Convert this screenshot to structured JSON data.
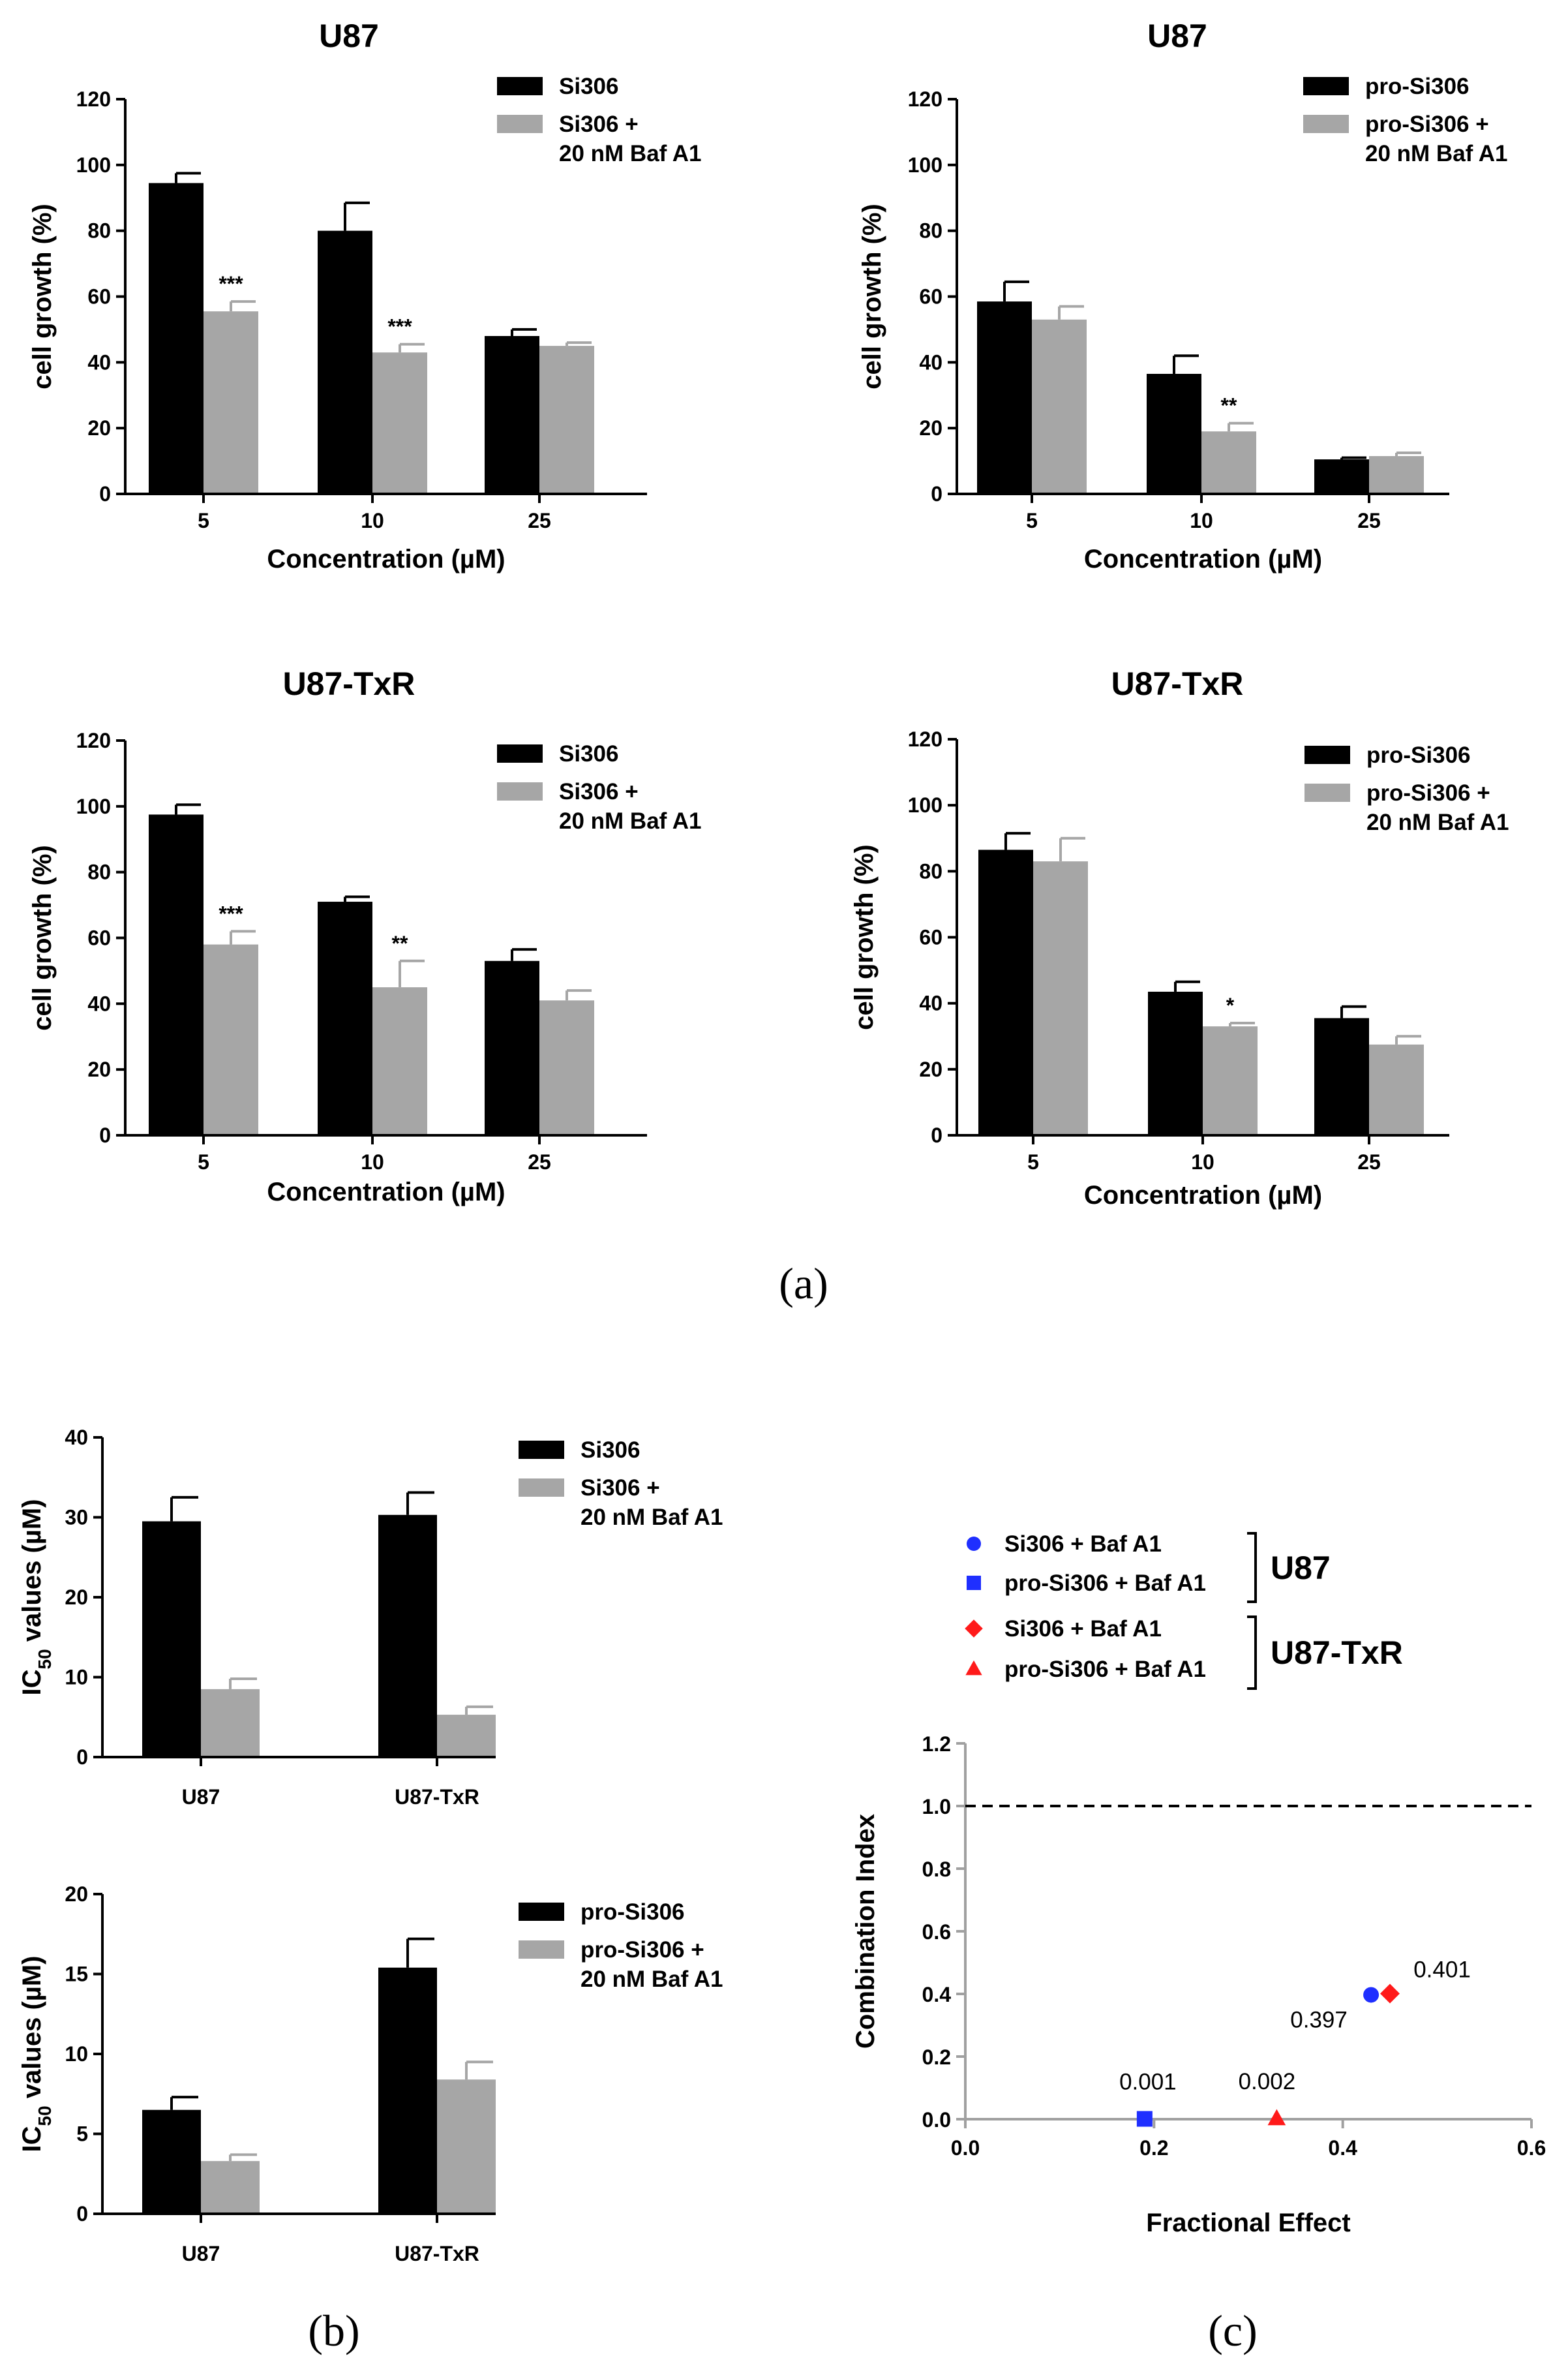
{
  "panel_labels": [
    "(a)",
    "(b)",
    "(c)"
  ],
  "colors": {
    "black": "#000000",
    "gray": "#a6a6a6",
    "blue": "#1f2fff",
    "red": "#ff1a1a"
  },
  "chart_data": [
    {
      "id": "a1",
      "type": "bar",
      "title": "U87",
      "xlabel": "Concentration (µM)",
      "ylabel": "cell growth (%)",
      "ylim": [
        0,
        120
      ],
      "yticks": [
        "0",
        "20",
        "40",
        "60",
        "80",
        "100",
        "120"
      ],
      "categories": [
        "5",
        "10",
        "25"
      ],
      "series": [
        {
          "name": "Si306",
          "color": "#000000",
          "values": [
            94.5,
            80,
            48
          ],
          "errors": [
            3,
            8.5,
            2
          ]
        },
        {
          "name": "Si306 + 20 nM Baf A1",
          "color": "#a6a6a6",
          "values": [
            55.5,
            43,
            45
          ],
          "errors": [
            3,
            2.5,
            1
          ]
        }
      ],
      "legend": [
        [
          "Si306"
        ],
        [
          "Si306 +",
          "20 nM Baf A1"
        ]
      ],
      "annotations": [
        {
          "category": 0,
          "text": "***"
        },
        {
          "category": 1,
          "text": "***"
        }
      ]
    },
    {
      "id": "a2",
      "type": "bar",
      "title": "U87",
      "xlabel": "Concentration (µM)",
      "ylabel": "cell growth (%)",
      "ylim": [
        0,
        120
      ],
      "yticks": [
        "0",
        "20",
        "40",
        "60",
        "80",
        "100",
        "120"
      ],
      "categories": [
        "5",
        "10",
        "25"
      ],
      "series": [
        {
          "name": "pro-Si306",
          "color": "#000000",
          "values": [
            58.5,
            36.5,
            10.5
          ],
          "errors": [
            6,
            5.5,
            0.5
          ]
        },
        {
          "name": "pro-Si306 + 20 nM Baf A1",
          "color": "#a6a6a6",
          "values": [
            53,
            19,
            11.5
          ],
          "errors": [
            4,
            2.5,
            1
          ]
        }
      ],
      "legend": [
        [
          "pro-Si306"
        ],
        [
          "pro-Si306 +",
          "20 nM Baf A1"
        ]
      ],
      "annotations": [
        {
          "category": 1,
          "text": "**"
        }
      ]
    },
    {
      "id": "a3",
      "type": "bar",
      "title": "U87-TxR",
      "xlabel": "Concentration (µM)",
      "ylabel": "cell growth (%)",
      "ylim": [
        0,
        120
      ],
      "yticks": [
        "0",
        "20",
        "40",
        "60",
        "80",
        "100",
        "120"
      ],
      "categories": [
        "5",
        "10",
        "25"
      ],
      "series": [
        {
          "name": "Si306",
          "color": "#000000",
          "values": [
            97.5,
            71,
            53
          ],
          "errors": [
            3,
            1.5,
            3.5
          ]
        },
        {
          "name": "Si306 + 20 nM Baf A1",
          "color": "#a6a6a6",
          "values": [
            58,
            45,
            41
          ],
          "errors": [
            4,
            8,
            3
          ]
        }
      ],
      "legend": [
        [
          "Si306"
        ],
        [
          "Si306 +",
          "20 nM Baf A1"
        ]
      ],
      "annotations": [
        {
          "category": 0,
          "text": "***"
        },
        {
          "category": 1,
          "text": "**"
        }
      ]
    },
    {
      "id": "a4",
      "type": "bar",
      "title": "U87-TxR",
      "xlabel": "Concentration (µM)",
      "ylabel": "cell growth (%)",
      "ylim": [
        0,
        120
      ],
      "yticks": [
        "0",
        "20",
        "40",
        "60",
        "80",
        "100",
        "120"
      ],
      "categories": [
        "5",
        "10",
        "25"
      ],
      "series": [
        {
          "name": "pro-Si306",
          "color": "#000000",
          "values": [
            86.5,
            43.5,
            35.5
          ],
          "errors": [
            5,
            3,
            3.5
          ]
        },
        {
          "name": "pro-Si306 + 20 nM Baf A1",
          "color": "#a6a6a6",
          "values": [
            83,
            33,
            27.5
          ],
          "errors": [
            7,
            1,
            2.5
          ]
        }
      ],
      "legend": [
        [
          "pro-Si306"
        ],
        [
          "pro-Si306 +",
          "20 nM Baf A1"
        ]
      ],
      "annotations": [
        {
          "category": 1,
          "text": "*"
        }
      ]
    },
    {
      "id": "b1",
      "type": "bar",
      "title": "",
      "xlabel": "",
      "ylabel": "IC50 values (µM)",
      "ylim": [
        0,
        40
      ],
      "yticks": [
        "0",
        "10",
        "20",
        "30",
        "40"
      ],
      "categories": [
        "U87",
        "U87-TxR"
      ],
      "series": [
        {
          "name": "Si306",
          "color": "#000000",
          "values": [
            29.5,
            30.3
          ],
          "errors": [
            3,
            2.8
          ]
        },
        {
          "name": "Si306 + 20 nM Baf A1",
          "color": "#a6a6a6",
          "values": [
            8.5,
            5.3
          ],
          "errors": [
            1.3,
            1
          ]
        }
      ],
      "legend": [
        [
          "Si306"
        ],
        [
          "Si306 +",
          "20 nM Baf A1"
        ]
      ],
      "annotations": []
    },
    {
      "id": "b2",
      "type": "bar",
      "title": "",
      "xlabel": "",
      "ylabel": "IC50 values (µM)",
      "ylim": [
        0,
        20
      ],
      "yticks": [
        "0",
        "5",
        "10",
        "15",
        "20"
      ],
      "categories": [
        "U87",
        "U87-TxR"
      ],
      "series": [
        {
          "name": "pro-Si306",
          "color": "#000000",
          "values": [
            6.5,
            15.4
          ],
          "errors": [
            0.8,
            1.8
          ]
        },
        {
          "name": "pro-Si306 + 20 nM Baf A1",
          "color": "#a6a6a6",
          "values": [
            3.3,
            8.4
          ],
          "errors": [
            0.4,
            1.1
          ]
        }
      ],
      "legend": [
        [
          "pro-Si306"
        ],
        [
          "pro-Si306 +",
          "20 nM Baf A1"
        ]
      ],
      "annotations": []
    },
    {
      "id": "c",
      "type": "scatter",
      "title": "",
      "xlabel": "Fractional Effect",
      "ylabel": "Combination Index",
      "xlim": [
        0,
        0.6
      ],
      "ylim": [
        0,
        1.2
      ],
      "xticks": [
        "0.0",
        "0.2",
        "0.4",
        "0.6"
      ],
      "yticks": [
        "0.0",
        "0.2",
        "0.4",
        "0.6",
        "0.8",
        "1.0",
        "1.2"
      ],
      "reference_line": 1.0,
      "points": [
        {
          "name": "Si306 + Baf A1",
          "group": "U87",
          "marker": "circle",
          "color": "#1f2fff",
          "x": 0.43,
          "y": 0.397,
          "label": "0.397"
        },
        {
          "name": "pro-Si306 + Baf A1",
          "group": "U87",
          "marker": "square",
          "color": "#1f2fff",
          "x": 0.19,
          "y": 0.001,
          "label": "0.001"
        },
        {
          "name": "Si306 + Baf A1",
          "group": "U87-TxR",
          "marker": "diamond",
          "color": "#ff1a1a",
          "x": 0.45,
          "y": 0.401,
          "label": "0.401"
        },
        {
          "name": "pro-Si306 + Baf A1",
          "group": "U87-TxR",
          "marker": "triangle",
          "color": "#ff1a1a",
          "x": 0.33,
          "y": 0.002,
          "label": "0.002"
        }
      ],
      "legend_groups": [
        "U87",
        "U87-TxR"
      ]
    }
  ]
}
